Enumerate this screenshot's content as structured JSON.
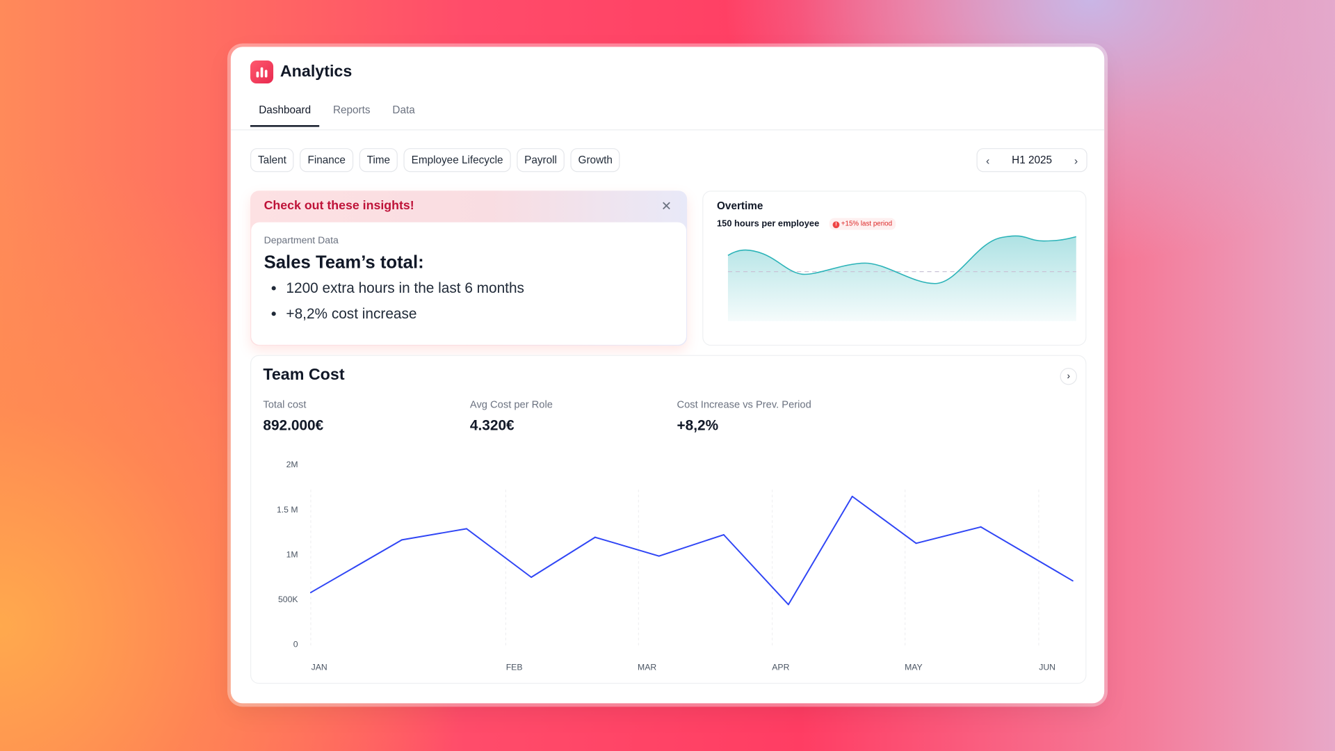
{
  "app": {
    "title": "Analytics",
    "accent": "#f0375a"
  },
  "tabs": [
    {
      "label": "Dashboard",
      "active": true
    },
    {
      "label": "Reports"
    },
    {
      "label": "Data"
    }
  ],
  "filters": [
    "Talent",
    "Finance",
    "Time",
    "Employee Lifecycle",
    "Payroll",
    "Growth"
  ],
  "period": {
    "label": "H1 2025"
  },
  "insight": {
    "heading": "Check out these insights!",
    "label": "Department Data",
    "title": "Sales Team’s total:",
    "bullets": [
      "1200 extra hours in the last 6 months",
      "+8,2% cost increase"
    ]
  },
  "overtime": {
    "title": "Overtime",
    "subtitle": "150 hours per employee",
    "badge": "+15% last period",
    "badge_icon": "!",
    "color": "#2bb3b8"
  },
  "team_cost": {
    "title": "Team Cost",
    "kpis": [
      {
        "label": "Total cost",
        "value": "892.000€"
      },
      {
        "label": "Avg Cost per Role",
        "value": "4.320€"
      },
      {
        "label": "Cost Increase vs Prev. Period",
        "value": "+8,2%"
      }
    ]
  },
  "chart_data": {
    "type": "line",
    "ylim": [
      0,
      2000000
    ],
    "yticks": [
      "2M",
      "1.5 M",
      "1M",
      "500K",
      "0"
    ],
    "xticks": [
      "JAN",
      "FEB",
      "MAR",
      "APR",
      "MAY",
      "JUN"
    ],
    "grid": true,
    "line_color": "#2f45f5",
    "values": [
      570000,
      1156000,
      1280000,
      740000,
      1185000,
      976000,
      1213000,
      436000,
      1640000,
      1118000,
      1300000,
      700000
    ]
  }
}
